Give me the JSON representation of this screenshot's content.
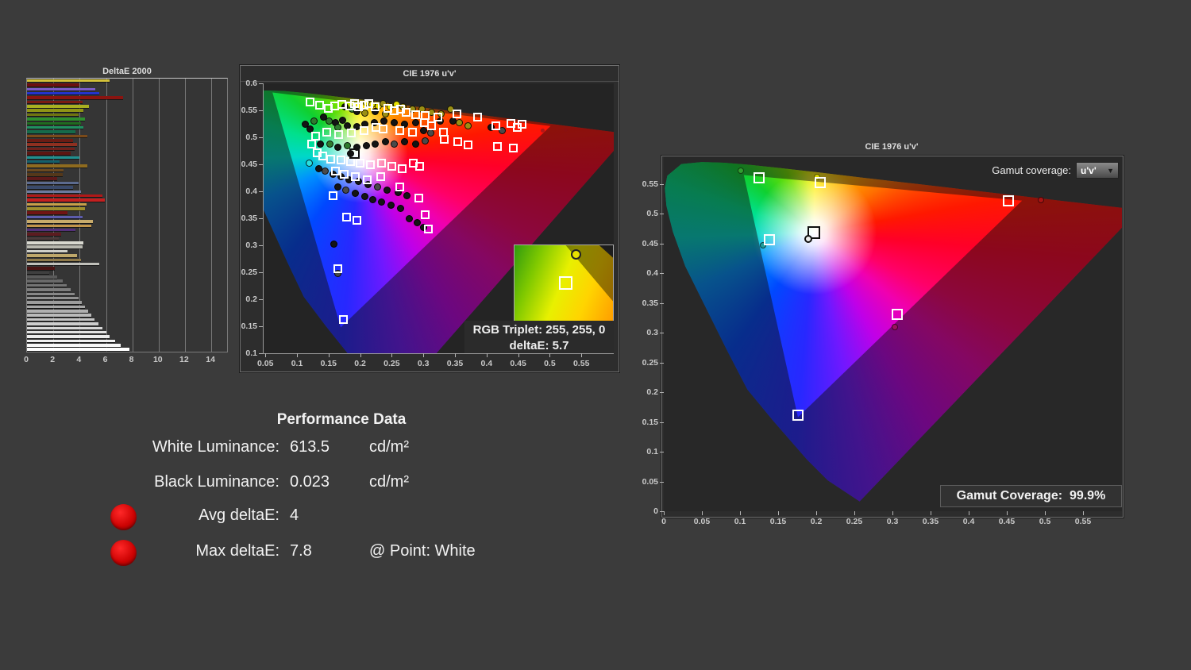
{
  "deltae_chart": {
    "title": "DeltaE 2000",
    "type": "bar",
    "x_ticks": [
      0,
      2,
      4,
      6,
      8,
      10,
      12,
      14
    ],
    "x_max": 15.2,
    "bars": [
      [
        "#d4c23a",
        6.3
      ],
      [
        "#6b1010",
        4.0
      ],
      [
        "#7b5cc8",
        5.2
      ],
      [
        "#2433cc",
        5.5
      ],
      [
        "#8a1410",
        7.3
      ],
      [
        "#7a1a12",
        4.2
      ],
      [
        "#a8b020",
        4.7
      ],
      [
        "#8f9416",
        4.3
      ],
      [
        "#6f7410",
        3.9
      ],
      [
        "#2e8f2e",
        4.4
      ],
      [
        "#1f6b1f",
        4.1
      ],
      [
        "#1f8f5f",
        4.3
      ],
      [
        "#156b4a",
        3.7
      ],
      [
        "#7a4a1a",
        4.6
      ],
      [
        "#6b1c14",
        3.5
      ],
      [
        "#8f3020",
        3.8
      ],
      [
        "#70201a",
        3.6
      ],
      [
        "#5c1612",
        3.3
      ],
      [
        "#1f8f8f",
        4.0
      ],
      [
        "#14606b",
        2.5
      ],
      [
        "#8f6b1f",
        4.6
      ],
      [
        "#6b4a20",
        2.8
      ],
      [
        "#54381a",
        2.7
      ],
      [
        "#5c1a1a",
        2.3
      ],
      [
        "#5c6b8f",
        3.9
      ],
      [
        "#3a4a6b",
        3.5
      ],
      [
        "#6b7a9f",
        4.1
      ],
      [
        "#b01818",
        5.7
      ],
      [
        "#c42020",
        5.9
      ],
      [
        "#c89f4a",
        4.5
      ],
      [
        "#9f8f2e",
        4.4
      ],
      [
        "#701414",
        3.1
      ],
      [
        "#5c5cab",
        4.2
      ],
      [
        "#c8ab6b",
        5.0
      ],
      [
        "#c2954a",
        4.9
      ],
      [
        "#54307a",
        3.7
      ],
      [
        "#5c1c20",
        2.6
      ],
      [
        "#4a3a3a",
        2.4
      ],
      [
        "#d8d8d0",
        4.3
      ],
      [
        "#b8b8b0",
        4.2
      ],
      [
        "#cfcfc8",
        3.1
      ],
      [
        "#bfa86b",
        3.8
      ],
      [
        "#8f7a4a",
        4.1
      ],
      [
        "#c0c0ba",
        5.5
      ],
      [
        "#4a1414",
        2.1
      ],
      [
        "#3f3f3f",
        1.7
      ],
      [
        "#5a5a5a",
        2.3
      ],
      [
        "#6a6a6a",
        2.7
      ],
      [
        "#747474",
        3.0
      ],
      [
        "#7e7e7e",
        3.3
      ],
      [
        "#888888",
        3.6
      ],
      [
        "#929292",
        3.9
      ],
      [
        "#9c9c9c",
        4.15
      ],
      [
        "#a6a6a6",
        4.4
      ],
      [
        "#b0b0b0",
        4.65
      ],
      [
        "#bababa",
        4.9
      ],
      [
        "#c4c4c4",
        5.15
      ],
      [
        "#cecece",
        5.4
      ],
      [
        "#d8d8d8",
        5.7
      ],
      [
        "#e2e2e2",
        6.0
      ],
      [
        "#ececec",
        6.3
      ],
      [
        "#f2f2f2",
        6.7
      ],
      [
        "#f8f8f8",
        7.1
      ],
      [
        "#ffffff",
        7.8
      ]
    ]
  },
  "cie_mid": {
    "title": "CIE 1976 u'v'",
    "type": "scatter",
    "x_range": [
      0.046,
      0.6
    ],
    "y_range": [
      0.1,
      0.6
    ],
    "x_ticks": [
      0.05,
      0.1,
      0.15,
      0.2,
      0.25,
      0.3,
      0.35,
      0.4,
      0.45,
      0.5,
      0.55
    ],
    "y_ticks": [
      0.6,
      0.55,
      0.5,
      0.45,
      0.4,
      0.35,
      0.3,
      0.25,
      0.2,
      0.15,
      0.1
    ],
    "white_point": [
      0.1978,
      0.4683
    ],
    "gamut_triangle": [
      [
        0.06,
        0.583
      ],
      [
        0.5,
        0.521
      ],
      [
        0.168,
        0.148
      ]
    ],
    "target_squares": [
      [
        0.119,
        0.566
      ],
      [
        0.135,
        0.559
      ],
      [
        0.148,
        0.554
      ],
      [
        0.158,
        0.558
      ],
      [
        0.17,
        0.561
      ],
      [
        0.182,
        0.558
      ],
      [
        0.19,
        0.563
      ],
      [
        0.196,
        0.557
      ],
      [
        0.205,
        0.56
      ],
      [
        0.213,
        0.562
      ],
      [
        0.222,
        0.556
      ],
      [
        0.242,
        0.554
      ],
      [
        0.253,
        0.549
      ],
      [
        0.263,
        0.553
      ],
      [
        0.272,
        0.547
      ],
      [
        0.287,
        0.542
      ],
      [
        0.302,
        0.54
      ],
      [
        0.322,
        0.538
      ],
      [
        0.352,
        0.544
      ],
      [
        0.385,
        0.537
      ],
      [
        0.413,
        0.522
      ],
      [
        0.437,
        0.526
      ],
      [
        0.447,
        0.519
      ],
      [
        0.455,
        0.524
      ],
      [
        0.3,
        0.528
      ],
      [
        0.312,
        0.521
      ],
      [
        0.33,
        0.509
      ],
      [
        0.282,
        0.509
      ],
      [
        0.262,
        0.512
      ],
      [
        0.235,
        0.515
      ],
      [
        0.224,
        0.519
      ],
      [
        0.205,
        0.513
      ],
      [
        0.185,
        0.508
      ],
      [
        0.165,
        0.505
      ],
      [
        0.146,
        0.509
      ],
      [
        0.128,
        0.502
      ],
      [
        0.122,
        0.488
      ],
      [
        0.131,
        0.472
      ],
      [
        0.14,
        0.465
      ],
      [
        0.152,
        0.46
      ],
      [
        0.168,
        0.458
      ],
      [
        0.184,
        0.455
      ],
      [
        0.198,
        0.452
      ],
      [
        0.215,
        0.449
      ],
      [
        0.232,
        0.452
      ],
      [
        0.249,
        0.446
      ],
      [
        0.265,
        0.442
      ],
      [
        0.283,
        0.452
      ],
      [
        0.293,
        0.447
      ],
      [
        0.16,
        0.438
      ],
      [
        0.173,
        0.432
      ],
      [
        0.191,
        0.428
      ],
      [
        0.21,
        0.422
      ],
      [
        0.156,
        0.392
      ],
      [
        0.177,
        0.352
      ],
      [
        0.193,
        0.346
      ],
      [
        0.231,
        0.428
      ],
      [
        0.261,
        0.408
      ],
      [
        0.292,
        0.388
      ],
      [
        0.301,
        0.356
      ],
      [
        0.307,
        0.33
      ],
      [
        0.163,
        0.256
      ],
      [
        0.172,
        0.162
      ],
      [
        0.416,
        0.483
      ],
      [
        0.441,
        0.48
      ],
      [
        0.353,
        0.492
      ],
      [
        0.369,
        0.486
      ],
      [
        0.332,
        0.496
      ]
    ],
    "white_target_square": [
      0.19,
      0.47
    ],
    "measured_circles": [
      [
        0.208,
        0.564,
        "y"
      ],
      [
        0.218,
        0.561,
        "y"
      ],
      [
        0.228,
        0.558,
        "y"
      ],
      [
        0.246,
        0.557,
        "y"
      ],
      [
        0.256,
        0.561,
        "y"
      ],
      [
        0.235,
        0.563,
        "o"
      ],
      [
        0.266,
        0.557,
        "o"
      ],
      [
        0.282,
        0.553,
        "o"
      ],
      [
        0.297,
        0.552,
        "o"
      ],
      [
        0.312,
        0.546,
        "o"
      ],
      [
        0.327,
        0.543,
        "o"
      ],
      [
        0.342,
        0.553,
        "o"
      ],
      [
        0.356,
        0.528,
        "o"
      ],
      [
        0.369,
        0.522,
        "o"
      ],
      [
        0.175,
        0.556,
        "d"
      ],
      [
        0.186,
        0.552,
        "g"
      ],
      [
        0.193,
        0.548,
        "d"
      ],
      [
        0.206,
        0.545,
        "o"
      ],
      [
        0.223,
        0.548,
        "d"
      ],
      [
        0.239,
        0.544,
        "o"
      ],
      [
        0.112,
        0.524,
        "d"
      ],
      [
        0.119,
        0.516,
        "d"
      ],
      [
        0.126,
        0.53,
        "g"
      ],
      [
        0.141,
        0.538,
        "d"
      ],
      [
        0.149,
        0.53,
        "g"
      ],
      [
        0.159,
        0.528,
        "d"
      ],
      [
        0.171,
        0.532,
        "d"
      ],
      [
        0.164,
        0.518,
        "g"
      ],
      [
        0.179,
        0.522,
        "d"
      ],
      [
        0.193,
        0.52,
        "d"
      ],
      [
        0.206,
        0.525,
        "d"
      ],
      [
        0.221,
        0.528,
        "d"
      ],
      [
        0.236,
        0.53,
        "d"
      ],
      [
        0.253,
        0.528,
        "d"
      ],
      [
        0.269,
        0.525,
        "d"
      ],
      [
        0.286,
        0.528,
        "d"
      ],
      [
        0.299,
        0.512,
        "d"
      ],
      [
        0.311,
        0.508,
        "k"
      ],
      [
        0.326,
        0.53,
        "d"
      ],
      [
        0.346,
        0.53,
        "d"
      ],
      [
        0.406,
        0.518,
        "d"
      ],
      [
        0.423,
        0.512,
        "k"
      ],
      [
        0.301,
        0.493,
        "k"
      ],
      [
        0.286,
        0.488,
        "d"
      ],
      [
        0.269,
        0.492,
        "d"
      ],
      [
        0.253,
        0.488,
        "k"
      ],
      [
        0.239,
        0.492,
        "d"
      ],
      [
        0.223,
        0.488,
        "d"
      ],
      [
        0.209,
        0.485,
        "d"
      ],
      [
        0.193,
        0.482,
        "d"
      ],
      [
        0.179,
        0.485,
        "g"
      ],
      [
        0.163,
        0.482,
        "d"
      ],
      [
        0.151,
        0.488,
        "g"
      ],
      [
        0.136,
        0.488,
        "d"
      ],
      [
        0.118,
        0.452,
        "c"
      ],
      [
        0.133,
        0.442,
        "d"
      ],
      [
        0.143,
        0.438,
        "k"
      ],
      [
        0.156,
        0.432,
        "d"
      ],
      [
        0.169,
        0.428,
        "d"
      ],
      [
        0.181,
        0.422,
        "d"
      ],
      [
        0.196,
        0.418,
        "d"
      ],
      [
        0.211,
        0.412,
        "d"
      ],
      [
        0.226,
        0.408,
        "k"
      ],
      [
        0.241,
        0.402,
        "d"
      ],
      [
        0.259,
        0.398,
        "d"
      ],
      [
        0.273,
        0.392,
        "d"
      ],
      [
        0.163,
        0.408,
        "d"
      ],
      [
        0.176,
        0.402,
        "k"
      ],
      [
        0.191,
        0.396,
        "d"
      ],
      [
        0.206,
        0.39,
        "d"
      ],
      [
        0.219,
        0.385,
        "d"
      ],
      [
        0.233,
        0.38,
        "d"
      ],
      [
        0.247,
        0.375,
        "d"
      ],
      [
        0.263,
        0.368,
        "d"
      ],
      [
        0.277,
        0.35,
        "d"
      ],
      [
        0.289,
        0.342,
        "d"
      ],
      [
        0.299,
        0.333,
        "d"
      ],
      [
        0.157,
        0.302,
        "d"
      ],
      [
        0.164,
        0.248,
        "k"
      ],
      [
        0.183,
        0.47,
        "d"
      ]
    ],
    "small_dots": [
      [
        0.487,
        0.513,
        "#b01818"
      ],
      [
        0.524,
        0.514,
        "#8a1010"
      ]
    ],
    "circle_fills": {
      "y": "#e6e000",
      "o": "#9a8f14",
      "d": "#141414",
      "g": "#2e7a2e",
      "k": "#4a4a4a",
      "c": "#28e0e0"
    },
    "inset": {
      "dot_pos": [
        0.57,
        0.05
      ],
      "square_pos": [
        0.45,
        0.4
      ]
    },
    "tooltip": {
      "line1": "RGB Triplet: 255, 255, 0",
      "line2": "deltaE: 5.7"
    }
  },
  "cie_right": {
    "title": "CIE 1976 u'v'",
    "type": "scatter",
    "x_range": [
      0.0,
      0.601
    ],
    "y_range": [
      0.0,
      0.595
    ],
    "x_ticks": [
      0,
      0.05,
      0.1,
      0.15,
      0.2,
      0.25,
      0.3,
      0.35,
      0.4,
      0.45,
      0.5,
      0.55
    ],
    "y_ticks": [
      0.55,
      0.5,
      0.45,
      0.4,
      0.35,
      0.3,
      0.25,
      0.2,
      0.15,
      0.1,
      0.05,
      0
    ],
    "white_point": [
      0.1978,
      0.4683
    ],
    "gamut_triangle": [
      [
        0.105,
        0.565
      ],
      [
        0.47,
        0.522
      ],
      [
        0.176,
        0.158
      ]
    ],
    "dropdown": {
      "label": "Gamut coverage:",
      "value": "u'v'"
    },
    "coverage": {
      "label": "Gamut Coverage:",
      "value": "99.9%"
    },
    "target_squares": [
      [
        0.125,
        0.56
      ],
      [
        0.205,
        0.552
      ],
      [
        0.452,
        0.522
      ],
      [
        0.139,
        0.456
      ],
      [
        0.306,
        0.331
      ],
      [
        0.176,
        0.161
      ]
    ],
    "white_target_square": [
      0.197,
      0.468
    ],
    "primary_dots": [
      [
        0.101,
        0.572,
        "#2f9e2f"
      ],
      [
        0.201,
        0.562,
        "#d8d400"
      ],
      [
        0.495,
        0.523,
        "#a81414"
      ],
      [
        0.13,
        0.447,
        "#1f9e9e"
      ],
      [
        0.303,
        0.309,
        "#9e1060"
      ]
    ],
    "white_measured_dot": [
      0.19,
      0.458
    ]
  },
  "cie_locus": [
    [
      0.2569,
      0.0165
    ],
    [
      0.215,
      0.052
    ],
    [
      0.1877,
      0.0871
    ],
    [
      0.1441,
      0.151
    ],
    [
      0.1096,
      0.2046
    ],
    [
      0.0828,
      0.2708
    ],
    [
      0.0282,
      0.4117
    ],
    [
      0.0119,
      0.4699
    ],
    [
      0.0035,
      0.5131
    ],
    [
      0.0014,
      0.5432
    ],
    [
      0.0046,
      0.5639
    ],
    [
      0.0231,
      0.5836
    ],
    [
      0.0501,
      0.5868
    ],
    [
      0.0792,
      0.5856
    ],
    [
      0.1127,
      0.5821
    ],
    [
      0.1531,
      0.5766
    ],
    [
      0.2026,
      0.5694
    ],
    [
      0.2623,
      0.5604
    ],
    [
      0.3315,
      0.5501
    ],
    [
      0.4035,
      0.5393
    ],
    [
      0.4692,
      0.5296
    ],
    [
      0.5202,
      0.5219
    ],
    [
      0.6005,
      0.5099
    ],
    [
      0.6234,
      0.5065
    ]
  ],
  "performance": {
    "title": "Performance Data",
    "rows": [
      {
        "label": "White Luminance:",
        "value": "613.5",
        "unit": "cd/m²"
      },
      {
        "label": "Black Luminance:",
        "value": "0.023",
        "unit": "cd/m²"
      },
      {
        "label": "Avg deltaE:",
        "value": "4",
        "unit": ""
      },
      {
        "label": "Max deltaE:",
        "value": "7.8",
        "unit": "@ Point: White"
      }
    ],
    "indicator_color": "#cf0404"
  }
}
